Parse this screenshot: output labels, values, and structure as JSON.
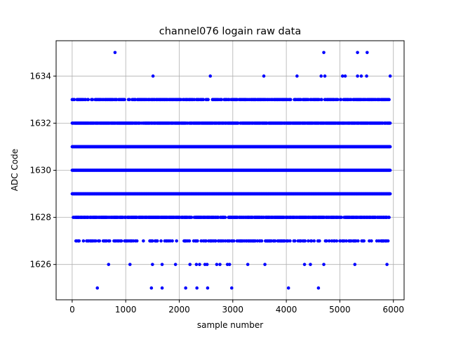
{
  "chart_data": {
    "type": "scatter",
    "title": "channel076 logain raw data",
    "xlabel": "sample number",
    "ylabel": "ADC Code",
    "xlim": [
      -300,
      6200
    ],
    "ylim": [
      1624.5,
      1635.5
    ],
    "x_ticks": [
      0,
      1000,
      2000,
      3000,
      4000,
      5000,
      6000
    ],
    "y_ticks": [
      1626,
      1628,
      1630,
      1632,
      1634
    ],
    "grid": true,
    "marker_color": "#0000ff",
    "series": [
      {
        "dense_bands": [
          {
            "y": 1633,
            "x_start": 0,
            "x_end": 5940,
            "density": 0.55
          },
          {
            "y": 1632,
            "x_start": 0,
            "x_end": 5940,
            "density": 0.9
          },
          {
            "y": 1631,
            "x_start": 0,
            "x_end": 5940,
            "density": 1.0
          },
          {
            "y": 1630,
            "x_start": 0,
            "x_end": 5940,
            "density": 1.0
          },
          {
            "y": 1629,
            "x_start": 0,
            "x_end": 5940,
            "density": 1.0
          },
          {
            "y": 1628,
            "x_start": 20,
            "x_end": 5940,
            "density": 0.8
          },
          {
            "y": 1627,
            "x_start": 50,
            "x_end": 5920,
            "density": 0.35
          }
        ],
        "sparse_points": [
          {
            "x": 800,
            "y": 1635
          },
          {
            "x": 4700,
            "y": 1635
          },
          {
            "x": 5330,
            "y": 1635
          },
          {
            "x": 5510,
            "y": 1635
          },
          {
            "x": 1510,
            "y": 1634
          },
          {
            "x": 2580,
            "y": 1634
          },
          {
            "x": 3580,
            "y": 1634
          },
          {
            "x": 4200,
            "y": 1634
          },
          {
            "x": 4650,
            "y": 1634
          },
          {
            "x": 4720,
            "y": 1634
          },
          {
            "x": 5050,
            "y": 1634
          },
          {
            "x": 5100,
            "y": 1634
          },
          {
            "x": 5330,
            "y": 1634
          },
          {
            "x": 5400,
            "y": 1634
          },
          {
            "x": 5500,
            "y": 1634
          },
          {
            "x": 5940,
            "y": 1634
          },
          {
            "x": 680,
            "y": 1626
          },
          {
            "x": 1080,
            "y": 1626
          },
          {
            "x": 1500,
            "y": 1626
          },
          {
            "x": 1680,
            "y": 1626
          },
          {
            "x": 1930,
            "y": 1626
          },
          {
            "x": 2200,
            "y": 1626
          },
          {
            "x": 2320,
            "y": 1626
          },
          {
            "x": 2380,
            "y": 1626
          },
          {
            "x": 2480,
            "y": 1626
          },
          {
            "x": 2520,
            "y": 1626
          },
          {
            "x": 2700,
            "y": 1626
          },
          {
            "x": 2760,
            "y": 1626
          },
          {
            "x": 2900,
            "y": 1626
          },
          {
            "x": 2940,
            "y": 1626
          },
          {
            "x": 3280,
            "y": 1626
          },
          {
            "x": 3600,
            "y": 1626
          },
          {
            "x": 4340,
            "y": 1626
          },
          {
            "x": 4450,
            "y": 1626
          },
          {
            "x": 4700,
            "y": 1626
          },
          {
            "x": 5280,
            "y": 1626
          },
          {
            "x": 5880,
            "y": 1626
          },
          {
            "x": 470,
            "y": 1625
          },
          {
            "x": 1480,
            "y": 1625
          },
          {
            "x": 1680,
            "y": 1625
          },
          {
            "x": 2120,
            "y": 1625
          },
          {
            "x": 2330,
            "y": 1625
          },
          {
            "x": 2530,
            "y": 1625
          },
          {
            "x": 2980,
            "y": 1625
          },
          {
            "x": 4040,
            "y": 1625
          },
          {
            "x": 4600,
            "y": 1625
          }
        ]
      }
    ]
  }
}
